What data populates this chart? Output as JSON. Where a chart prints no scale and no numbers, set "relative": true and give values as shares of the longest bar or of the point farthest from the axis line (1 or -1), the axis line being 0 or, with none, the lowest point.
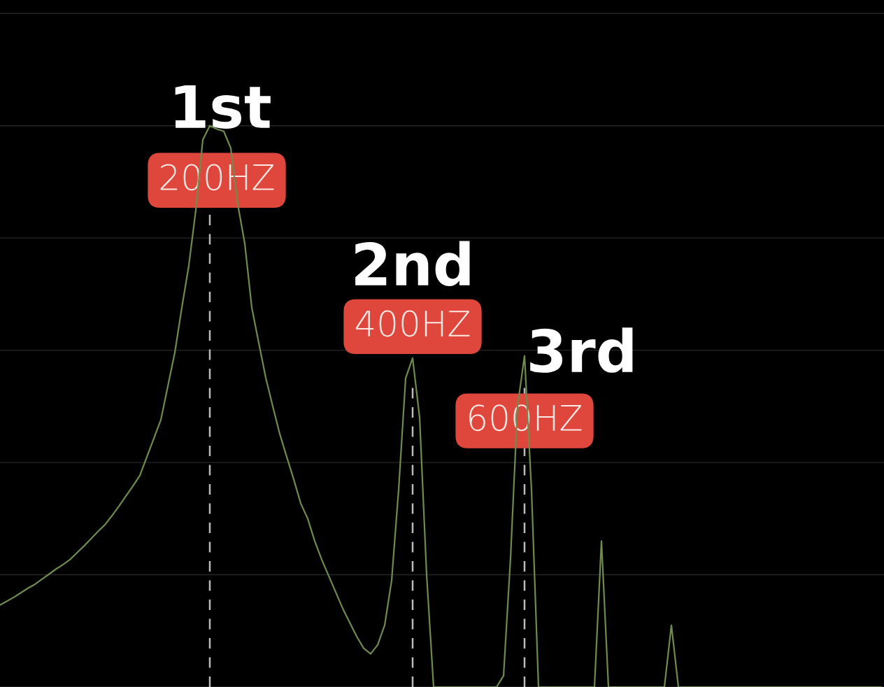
{
  "chart_data": {
    "type": "line",
    "relative": true,
    "tick_labels": false,
    "grid": "y",
    "legend": false,
    "categories": [
      null,
      null,
      null,
      null,
      null,
      null,
      null,
      null,
      null,
      null,
      null,
      null,
      null,
      null,
      null,
      null,
      null,
      null,
      null,
      null,
      null,
      null,
      null,
      null,
      null,
      null,
      null,
      null,
      null,
      null,
      null,
      null,
      null,
      null,
      null,
      null,
      null,
      null,
      null,
      null,
      null,
      null,
      null,
      null,
      null,
      null,
      null,
      null,
      null,
      null,
      null,
      null,
      null,
      null,
      null,
      null,
      null,
      null,
      null,
      null,
      null,
      null,
      null,
      null,
      null,
      null,
      null,
      null,
      null,
      null,
      null,
      null,
      null,
      null,
      null,
      null,
      null,
      null,
      null,
      null,
      null,
      null,
      null,
      null,
      null,
      null,
      null,
      null,
      null,
      null,
      null,
      null,
      null,
      null,
      null,
      null,
      null,
      null,
      null,
      null,
      null,
      null,
      null,
      null,
      null,
      null,
      null,
      null,
      null,
      null,
      null,
      null,
      null,
      null,
      null,
      null,
      null,
      null,
      null,
      null,
      null,
      null,
      null,
      null,
      null,
      null,
      null
    ],
    "series": [
      {
        "color": "#6f8a4e",
        "values": [
          0.146,
          0.153,
          0.16,
          0.168,
          0.176,
          0.183,
          0.192,
          0.201,
          0.21,
          0.218,
          0.227,
          0.239,
          0.251,
          0.264,
          0.277,
          0.289,
          0.305,
          0.322,
          0.34,
          0.358,
          0.377,
          0.41,
          0.443,
          0.476,
          0.536,
          0.596,
          0.676,
          0.751,
          0.85,
          0.975,
          1.0,
          0.994,
          0.99,
          0.96,
          0.86,
          0.79,
          0.676,
          0.613,
          0.551,
          0.5,
          0.451,
          0.41,
          0.37,
          0.327,
          0.3,
          0.26,
          0.227,
          0.198,
          0.169,
          0.14,
          0.115,
          0.09,
          0.069,
          0.059,
          0.075,
          0.11,
          0.19,
          0.352,
          0.55,
          0.586,
          0.48,
          0.2,
          0,
          0,
          0,
          0,
          0,
          0,
          0,
          0,
          0,
          0,
          0.02,
          0.23,
          0.5,
          0.59,
          0.35,
          0,
          0,
          0,
          0,
          0,
          0,
          0,
          0,
          0,
          0.26,
          0,
          0,
          0,
          0,
          0,
          0,
          0,
          0,
          0,
          0.11,
          0,
          0,
          0,
          0,
          0,
          0,
          0,
          0,
          0,
          0,
          0,
          0,
          0,
          0,
          0,
          0,
          0,
          0,
          0,
          0,
          0,
          0,
          0,
          0,
          0,
          0,
          0,
          0,
          0,
          0
        ]
      }
    ],
    "annotations": [
      "1st",
      "200HZ",
      "2nd",
      "400HZ",
      "3rd",
      "600HZ"
    ]
  }
}
